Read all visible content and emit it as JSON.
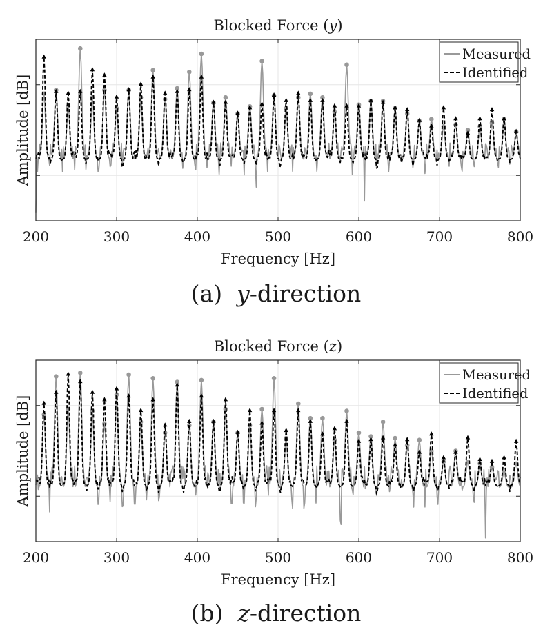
{
  "palette": {
    "measured": "#999999",
    "identified": "#000000",
    "grid": "#e6e6e6",
    "axis": "#262626",
    "text": "#1a1a1a"
  },
  "captions": [
    {
      "label": "(a)",
      "var": "y",
      "rest": "-direction"
    },
    {
      "label": "(b)",
      "var": "z",
      "rest": "-direction"
    }
  ],
  "chart_data": [
    {
      "type": "line",
      "title": "Blocked Force (y)",
      "xlabel": "Frequency [Hz]",
      "ylabel": "Amplitude [dB]",
      "xlim": [
        200,
        800
      ],
      "ylim": [
        0,
        10
      ],
      "xticks": [
        200,
        300,
        400,
        500,
        600,
        700,
        800
      ],
      "ytick_labels_shown": false,
      "grid": true,
      "legend_position": "top-right",
      "legend": [
        "Measured",
        "Identified"
      ],
      "series": [
        {
          "name": "Measured",
          "style": "solid-gray",
          "peak_markers": "filled-circle",
          "baseline": 3.4,
          "noise": 0.9,
          "peaks": [
            [
              210,
              7.0
            ],
            [
              225,
              7.2
            ],
            [
              240,
              6.3
            ],
            [
              255,
              9.5
            ],
            [
              270,
              6.8
            ],
            [
              285,
              7.2
            ],
            [
              300,
              6.2
            ],
            [
              315,
              7.2
            ],
            [
              330,
              6.8
            ],
            [
              345,
              8.3
            ],
            [
              360,
              6.7
            ],
            [
              375,
              7.3
            ],
            [
              390,
              8.2
            ],
            [
              405,
              9.2
            ],
            [
              420,
              6.5
            ],
            [
              435,
              6.8
            ],
            [
              450,
              5.9
            ],
            [
              465,
              6.3
            ],
            [
              480,
              8.8
            ],
            [
              495,
              6.9
            ],
            [
              510,
              6.2
            ],
            [
              525,
              6.8
            ],
            [
              540,
              7.0
            ],
            [
              555,
              6.8
            ],
            [
              570,
              6.0
            ],
            [
              585,
              8.6
            ],
            [
              600,
              6.4
            ],
            [
              615,
              6.6
            ],
            [
              630,
              6.6
            ],
            [
              645,
              6.2
            ],
            [
              660,
              5.9
            ],
            [
              675,
              5.5
            ],
            [
              690,
              5.6
            ],
            [
              705,
              5.2
            ],
            [
              720,
              5.3
            ],
            [
              735,
              5.0
            ],
            [
              750,
              5.2
            ],
            [
              765,
              5.4
            ],
            [
              780,
              5.6
            ],
            [
              795,
              4.9
            ]
          ]
        },
        {
          "name": "Identified",
          "style": "dashed-black",
          "peak_markers": "triangle-up",
          "baseline": 3.4,
          "peaks": [
            [
              210,
              9.0
            ],
            [
              225,
              7.1
            ],
            [
              240,
              7.0
            ],
            [
              255,
              7.1
            ],
            [
              270,
              8.3
            ],
            [
              285,
              8.0
            ],
            [
              300,
              6.8
            ],
            [
              315,
              7.2
            ],
            [
              330,
              7.5
            ],
            [
              345,
              7.9
            ],
            [
              360,
              7.0
            ],
            [
              375,
              7.1
            ],
            [
              390,
              7.2
            ],
            [
              405,
              7.9
            ],
            [
              420,
              6.5
            ],
            [
              435,
              6.5
            ],
            [
              450,
              5.9
            ],
            [
              465,
              6.2
            ],
            [
              480,
              6.4
            ],
            [
              495,
              6.9
            ],
            [
              510,
              6.6
            ],
            [
              525,
              7.0
            ],
            [
              540,
              6.6
            ],
            [
              555,
              6.6
            ],
            [
              570,
              6.3
            ],
            [
              585,
              6.3
            ],
            [
              600,
              6.3
            ],
            [
              615,
              6.6
            ],
            [
              630,
              6.5
            ],
            [
              645,
              6.2
            ],
            [
              660,
              6.1
            ],
            [
              675,
              5.5
            ],
            [
              690,
              5.2
            ],
            [
              705,
              6.2
            ],
            [
              720,
              5.6
            ],
            [
              735,
              4.8
            ],
            [
              750,
              5.6
            ],
            [
              765,
              6.1
            ],
            [
              780,
              5.6
            ],
            [
              795,
              4.9
            ]
          ]
        }
      ]
    },
    {
      "type": "line",
      "title": "Blocked Force (z)",
      "xlabel": "Frequency [Hz]",
      "ylabel": "Amplitude [dB]",
      "xlim": [
        200,
        800
      ],
      "ylim": [
        0,
        10
      ],
      "xticks": [
        200,
        300,
        400,
        500,
        600,
        700,
        800
      ],
      "ytick_labels_shown": false,
      "grid": true,
      "legend_position": "top-right",
      "legend": [
        "Measured",
        "Identified"
      ],
      "series": [
        {
          "name": "Measured",
          "style": "solid-gray",
          "peak_markers": "filled-circle",
          "baseline": 3.0,
          "noise": 1.2,
          "peaks": [
            [
              210,
              7.0
            ],
            [
              225,
              9.1
            ],
            [
              240,
              7.3
            ],
            [
              255,
              9.3
            ],
            [
              270,
              7.2
            ],
            [
              285,
              6.5
            ],
            [
              300,
              8.1
            ],
            [
              315,
              9.2
            ],
            [
              330,
              6.6
            ],
            [
              345,
              9.0
            ],
            [
              360,
              6.0
            ],
            [
              375,
              8.8
            ],
            [
              390,
              6.4
            ],
            [
              405,
              8.9
            ],
            [
              420,
              6.6
            ],
            [
              435,
              7.3
            ],
            [
              450,
              6.0
            ],
            [
              465,
              6.4
            ],
            [
              480,
              7.3
            ],
            [
              495,
              9.0
            ],
            [
              510,
              5.7
            ],
            [
              525,
              7.6
            ],
            [
              540,
              6.8
            ],
            [
              555,
              6.8
            ],
            [
              570,
              5.6
            ],
            [
              585,
              7.2
            ],
            [
              600,
              6.0
            ],
            [
              615,
              5.8
            ],
            [
              630,
              6.6
            ],
            [
              645,
              5.7
            ],
            [
              660,
              5.3
            ],
            [
              675,
              5.6
            ],
            [
              690,
              5.0
            ],
            [
              705,
              4.4
            ],
            [
              720,
              5.0
            ],
            [
              735,
              4.4
            ],
            [
              750,
              4.3
            ],
            [
              765,
              4.1
            ],
            [
              780,
              3.8
            ],
            [
              795,
              4.3
            ]
          ]
        },
        {
          "name": "Identified",
          "style": "dashed-black",
          "peak_markers": "triangle-up",
          "baseline": 3.1,
          "peaks": [
            [
              210,
              7.6
            ],
            [
              225,
              8.2
            ],
            [
              240,
              9.2
            ],
            [
              255,
              8.8
            ],
            [
              270,
              8.2
            ],
            [
              285,
              7.8
            ],
            [
              300,
              8.4
            ],
            [
              315,
              8.0
            ],
            [
              330,
              7.2
            ],
            [
              345,
              7.8
            ],
            [
              360,
              6.4
            ],
            [
              375,
              8.6
            ],
            [
              390,
              6.6
            ],
            [
              405,
              8.0
            ],
            [
              420,
              6.6
            ],
            [
              435,
              7.8
            ],
            [
              450,
              6.0
            ],
            [
              465,
              7.2
            ],
            [
              480,
              6.5
            ],
            [
              495,
              7.2
            ],
            [
              510,
              6.1
            ],
            [
              525,
              7.2
            ],
            [
              540,
              6.6
            ],
            [
              555,
              5.9
            ],
            [
              570,
              6.2
            ],
            [
              585,
              6.6
            ],
            [
              600,
              5.5
            ],
            [
              615,
              5.6
            ],
            [
              630,
              5.7
            ],
            [
              645,
              5.3
            ],
            [
              660,
              5.6
            ],
            [
              675,
              4.9
            ],
            [
              690,
              5.9
            ],
            [
              705,
              4.6
            ],
            [
              720,
              4.9
            ],
            [
              735,
              5.7
            ],
            [
              750,
              4.5
            ],
            [
              765,
              4.4
            ],
            [
              780,
              4.6
            ],
            [
              795,
              5.5
            ]
          ]
        }
      ]
    }
  ]
}
